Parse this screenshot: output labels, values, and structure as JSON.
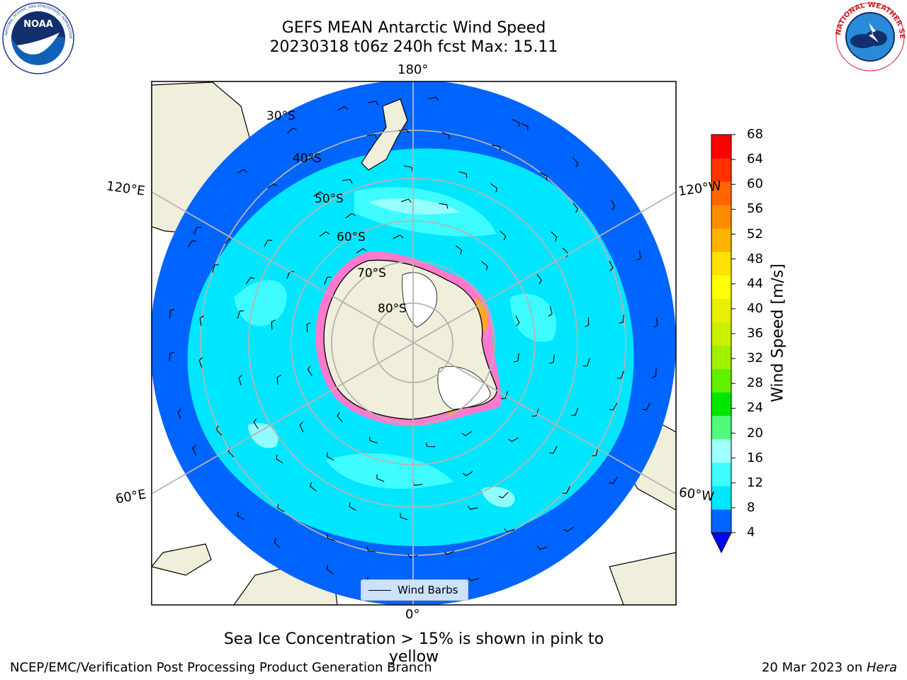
{
  "title_line1": "GEFS MEAN Antarctic Wind Speed",
  "title_line2": "20230318 t06z 240h fcst   Max: 15.11",
  "longitude_labels": {
    "top": "180°",
    "bottom": "0°",
    "left_upper": "120°E",
    "left_lower": "60°E",
    "right_upper": "120°W",
    "right_lower": "60°W"
  },
  "latitude_labels": [
    "30°S",
    "40°S",
    "50°S",
    "60°S",
    "70°S",
    "80°S"
  ],
  "legend": {
    "label": "Wind Barbs"
  },
  "colorbar": {
    "label": "Wind Speed [m/s]",
    "ticks": [
      "68",
      "64",
      "60",
      "56",
      "52",
      "48",
      "44",
      "40",
      "36",
      "32",
      "28",
      "24",
      "20",
      "16",
      "12",
      "8",
      "4"
    ],
    "colors_bottom_to_top": [
      "#0064ff",
      "#00e6ff",
      "#40fcff",
      "#a0ffff",
      "#50fa7a",
      "#00e600",
      "#60f000",
      "#a0f000",
      "#c8f000",
      "#e6f000",
      "#ffff00",
      "#ffe000",
      "#ffb400",
      "#ff8c00",
      "#ff6400",
      "#ff3200",
      "#ff0000"
    ],
    "under_color": "#0000ff"
  },
  "caption": "Sea Ice Concentration > 15% is shown in pink to yellow",
  "credit": "NCEP/EMC/Verification Post Processing Product Generation Branch",
  "date_text": "20 Mar 2023 on ",
  "date_machine": "Hera",
  "logos": {
    "left": "NOAA",
    "right": "NATIONAL WEATHER SERVICE"
  }
}
